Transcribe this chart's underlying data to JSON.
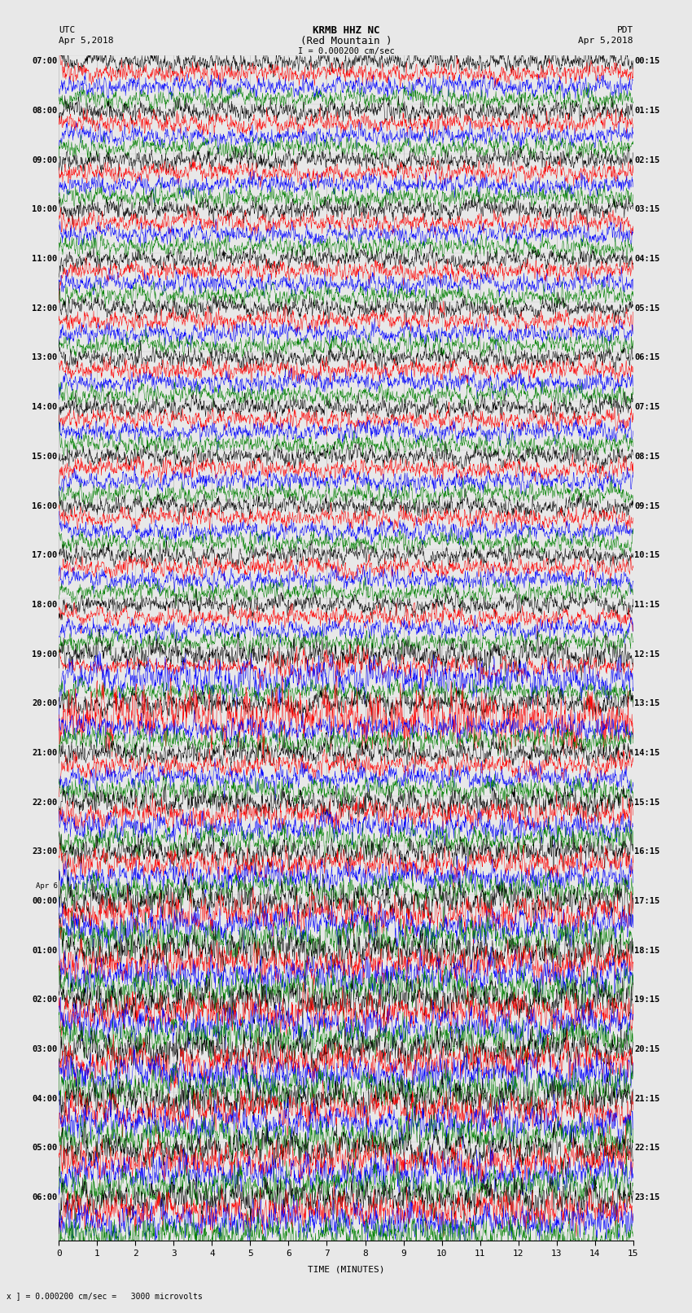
{
  "title_line1": "KRMB HHZ NC",
  "title_line2": "(Red Mountain )",
  "scale_label": "I = 0.000200 cm/sec",
  "utc_label": "UTC",
  "utc_date": "Apr 5,2018",
  "pdt_label": "PDT",
  "pdt_date": "Apr 5,2018",
  "xlabel": "TIME (MINUTES)",
  "bottom_note": "x ] = 0.000200 cm/sec =   3000 microvolts",
  "background_color": "#e8e8e8",
  "trace_colors": [
    "black",
    "red",
    "blue",
    "green"
  ],
  "utc_labels": [
    "07:00",
    "08:00",
    "09:00",
    "10:00",
    "11:00",
    "12:00",
    "13:00",
    "14:00",
    "15:00",
    "16:00",
    "17:00",
    "18:00",
    "19:00",
    "20:00",
    "21:00",
    "22:00",
    "23:00",
    "00:00",
    "01:00",
    "02:00",
    "03:00",
    "04:00",
    "05:00",
    "06:00"
  ],
  "pdt_labels": [
    "00:15",
    "01:15",
    "02:15",
    "03:15",
    "04:15",
    "05:15",
    "06:15",
    "07:15",
    "08:15",
    "09:15",
    "10:15",
    "11:15",
    "12:15",
    "13:15",
    "14:15",
    "15:15",
    "16:15",
    "17:15",
    "18:15",
    "19:15",
    "20:15",
    "21:15",
    "22:15",
    "23:15"
  ],
  "apr_label_idx": 17,
  "num_groups": 24,
  "traces_per_group": 4,
  "xmin": 0,
  "xmax": 15,
  "event_group": 12,
  "event_trace_color_idx": 1,
  "fig_width": 8.5,
  "fig_height": 16.13,
  "dpi": 100,
  "grid_color": "#aaaaaa",
  "grid_alpha": 0.5
}
